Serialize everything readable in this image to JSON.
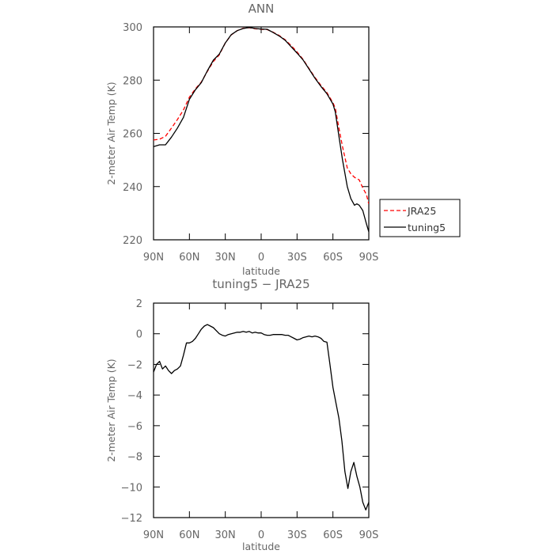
{
  "chart_data": [
    {
      "type": "line",
      "title": "ANN",
      "xlabel": "latitude",
      "ylabel": "2-meter Air Temp (K)",
      "xlim": [
        -90,
        90
      ],
      "ylim": [
        220,
        300
      ],
      "xticks": [
        -90,
        -60,
        -30,
        0,
        30,
        60,
        90
      ],
      "xtick_labels": [
        "90N",
        "60N",
        "30N",
        "0",
        "30S",
        "60S",
        "90S"
      ],
      "yticks": [
        220,
        240,
        260,
        280,
        300
      ],
      "legend": {
        "placement": "right-middle"
      },
      "series": [
        {
          "name": "JRA25",
          "color": "#ff0000",
          "dash": "dashed",
          "x": [
            -90,
            -85,
            -80,
            -75,
            -70,
            -65,
            -60,
            -55,
            -50,
            -45,
            -40,
            -35,
            -30,
            -25,
            -20,
            -15,
            -10,
            -5,
            0,
            5,
            10,
            15,
            20,
            25,
            30,
            35,
            40,
            45,
            50,
            55,
            60,
            62,
            65,
            68,
            70,
            72,
            75,
            78,
            80,
            82,
            85,
            88,
            90
          ],
          "y": [
            257.5,
            257.8,
            258.9,
            262.0,
            265.2,
            268.8,
            273.6,
            276.7,
            279.3,
            283.3,
            287.0,
            289.5,
            294.0,
            297.0,
            298.6,
            299.5,
            299.7,
            299.3,
            299.1,
            299.0,
            298.0,
            296.8,
            295.2,
            293.0,
            290.6,
            287.8,
            284.4,
            281.0,
            278.0,
            275.3,
            271.5,
            269.5,
            262.0,
            255.0,
            251.0,
            247.0,
            244.8,
            243.5,
            243.0,
            242.5,
            239.5,
            237.0,
            233.5
          ]
        },
        {
          "name": "tuning5",
          "color": "#000000",
          "dash": "solid",
          "x": [
            -90,
            -85,
            -80,
            -75,
            -70,
            -65,
            -60,
            -55,
            -50,
            -45,
            -40,
            -35,
            -30,
            -25,
            -20,
            -15,
            -10,
            -5,
            0,
            5,
            10,
            15,
            20,
            25,
            30,
            35,
            40,
            45,
            50,
            55,
            60,
            62,
            65,
            68,
            70,
            72,
            75,
            78,
            80,
            82,
            85,
            88,
            90
          ],
          "y": [
            255.0,
            255.7,
            255.7,
            258.6,
            262.0,
            266.0,
            272.8,
            276.4,
            279.1,
            283.5,
            287.5,
            289.8,
            294.0,
            297.1,
            298.6,
            299.4,
            299.8,
            299.4,
            299.2,
            299.1,
            297.9,
            296.6,
            295.0,
            292.6,
            290.2,
            287.6,
            284.2,
            280.7,
            277.6,
            274.9,
            271.0,
            268.0,
            259.0,
            250.0,
            245.0,
            240.0,
            235.5,
            233.0,
            233.5,
            233.0,
            231.0,
            226.0,
            223.0
          ]
        }
      ]
    },
    {
      "type": "line",
      "title": "tuning5 − JRA25",
      "xlabel": "latitude",
      "ylabel": "2-meter Air Temp (K)",
      "xlim": [
        -90,
        90
      ],
      "ylim": [
        -12,
        2
      ],
      "xticks": [
        -90,
        -60,
        -30,
        0,
        30,
        60,
        90
      ],
      "xtick_labels": [
        "90N",
        "60N",
        "30N",
        "0",
        "30S",
        "60S",
        "90S"
      ],
      "yticks": [
        -12,
        -10,
        -8,
        -6,
        -4,
        -2,
        0,
        2
      ],
      "series": [
        {
          "color": "#000000",
          "x": [
            -90,
            -87.5,
            -85,
            -82.5,
            -80,
            -77.5,
            -75,
            -72.5,
            -70,
            -67.5,
            -65,
            -62.5,
            -60,
            -57.5,
            -55,
            -52.5,
            -50,
            -47.5,
            -45,
            -42.5,
            -40,
            -37.5,
            -35,
            -32.5,
            -30,
            -27.5,
            -25,
            -22.5,
            -20,
            -17.5,
            -15,
            -12.5,
            -10,
            -7.5,
            -5,
            -2.5,
            0,
            2.5,
            5,
            7.5,
            10,
            12.5,
            15,
            17.5,
            20,
            22.5,
            25,
            27.5,
            30,
            32.5,
            35,
            37.5,
            40,
            42.5,
            45,
            47.5,
            50,
            52.5,
            55,
            57.5,
            60,
            62.5,
            65,
            67.5,
            70,
            72.5,
            75,
            77.5,
            80,
            82.5,
            85,
            87.5,
            90
          ],
          "y": [
            -2.5,
            -2.0,
            -1.8,
            -2.3,
            -2.1,
            -2.4,
            -2.6,
            -2.4,
            -2.3,
            -2.1,
            -1.4,
            -0.6,
            -0.6,
            -0.5,
            -0.3,
            0.0,
            0.3,
            0.5,
            0.6,
            0.5,
            0.4,
            0.2,
            0.0,
            -0.1,
            -0.15,
            -0.05,
            0.0,
            0.05,
            0.1,
            0.1,
            0.15,
            0.1,
            0.15,
            0.05,
            0.1,
            0.05,
            0.05,
            -0.05,
            -0.1,
            -0.1,
            -0.05,
            -0.05,
            -0.05,
            -0.05,
            -0.1,
            -0.1,
            -0.2,
            -0.3,
            -0.4,
            -0.35,
            -0.25,
            -0.2,
            -0.15,
            -0.2,
            -0.15,
            -0.2,
            -0.3,
            -0.5,
            -0.55,
            -2.0,
            -3.5,
            -4.5,
            -5.5,
            -7.0,
            -9.0,
            -10.1,
            -9.0,
            -8.4,
            -9.3,
            -10.0,
            -11.0,
            -11.5,
            -11.0
          ]
        }
      ]
    }
  ]
}
